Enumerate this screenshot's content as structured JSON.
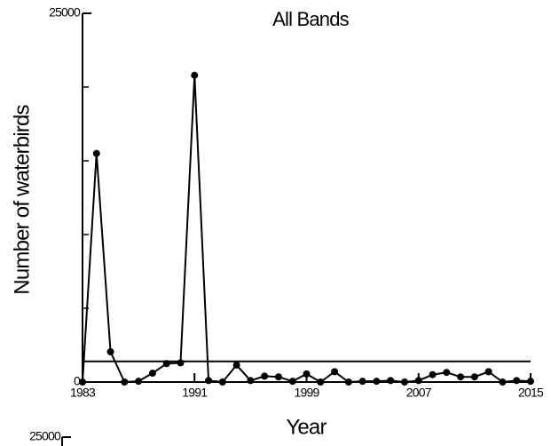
{
  "chart_data": {
    "type": "line",
    "title": "All Bands",
    "x_label": "Year",
    "y_label": "Number of waterbirds",
    "x": [
      1983,
      1984,
      1985,
      1986,
      1987,
      1988,
      1989,
      1990,
      1991,
      1992,
      1993,
      1994,
      1995,
      1996,
      1997,
      1998,
      1999,
      2000,
      2001,
      2002,
      2003,
      2004,
      2005,
      2006,
      2007,
      2008,
      2009,
      2010,
      2011,
      2012,
      2013,
      2014,
      2015
    ],
    "values": [
      0,
      15500,
      2050,
      0,
      50,
      600,
      1250,
      1300,
      20800,
      100,
      0,
      1150,
      100,
      400,
      350,
      50,
      550,
      0,
      700,
      0,
      50,
      50,
      100,
      0,
      100,
      500,
      650,
      350,
      350,
      700,
      0,
      100,
      50
    ],
    "color": "#000000",
    "reference_line": 1400,
    "xlim": [
      1983,
      2015
    ],
    "xticks": [
      1983,
      1991,
      1999,
      2007,
      2015
    ],
    "ylim": [
      0,
      25000
    ],
    "yticks": [
      0,
      25000
    ],
    "y_minor_ticks": [
      5000,
      10000,
      15000,
      20000
    ],
    "grid": false
  },
  "cropped_panel": {
    "ytick": 25000
  }
}
